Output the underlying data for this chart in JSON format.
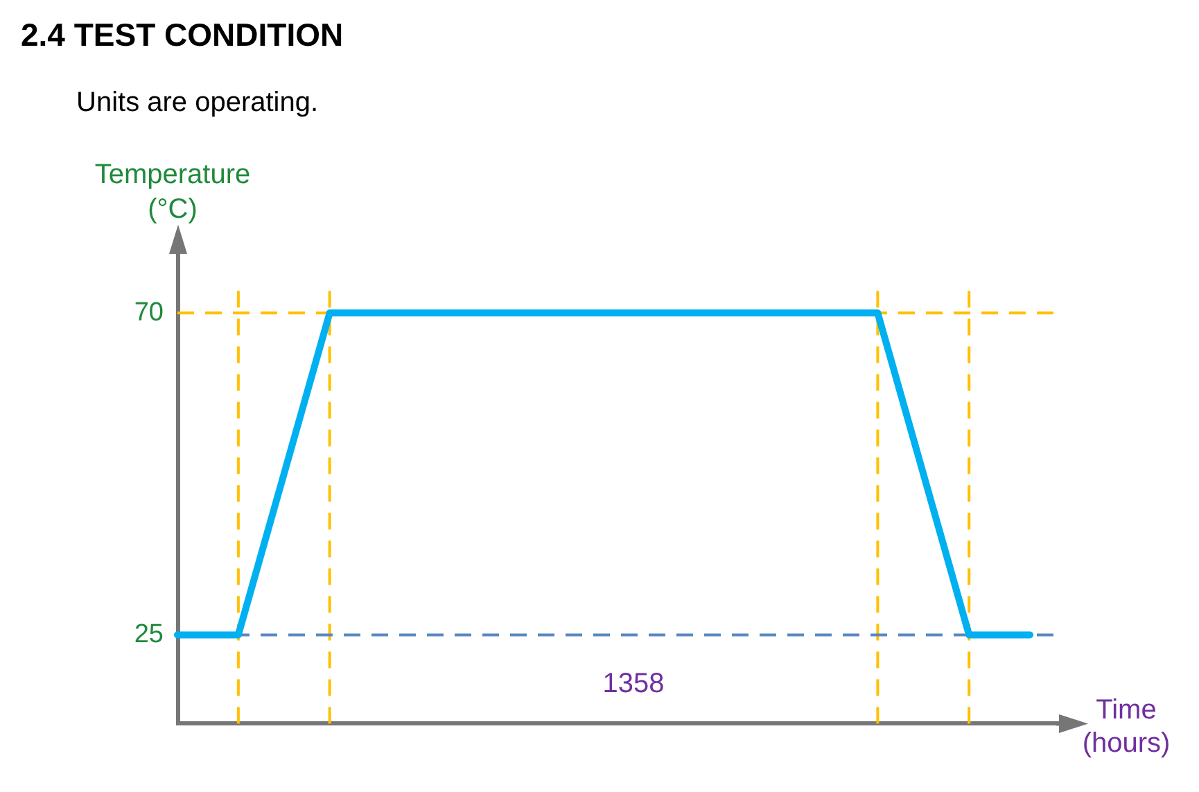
{
  "chart_data": {
    "type": "line",
    "title": "2.4 TEST CONDITION",
    "subtitle": "Units are operating.",
    "xlabel": "Time (hours)",
    "ylabel": "Temperature (°C)",
    "annotations": [
      "1358"
    ],
    "categories": [
      null,
      null,
      null,
      null,
      null,
      null,
      null,
      null,
      null,
      null,
      null,
      null,
      null,
      null,
      null,
      null,
      null,
      null,
      null,
      null,
      null,
      null,
      null,
      null,
      null,
      null,
      null,
      null,
      null,
      null
    ],
    "series": [
      {
        "color": "#00b0f0",
        "values": [
          25,
          25,
          25,
          40,
          55,
          70,
          70,
          70,
          70,
          70,
          70,
          70,
          70,
          70,
          70,
          70,
          70,
          70,
          70,
          70,
          70,
          70,
          70,
          70,
          55,
          40,
          25,
          25,
          25,
          null
        ]
      }
    ],
    "ylim": [
      12.6,
      74
    ],
    "yticks": [
      25,
      70
    ],
    "tick_labels": "y",
    "marker": "none",
    "grid": true,
    "ref_lines": [
      {
        "axis": "y",
        "value": 25,
        "color": "#5b87c0",
        "line_style": "dashed"
      }
    ]
  }
}
